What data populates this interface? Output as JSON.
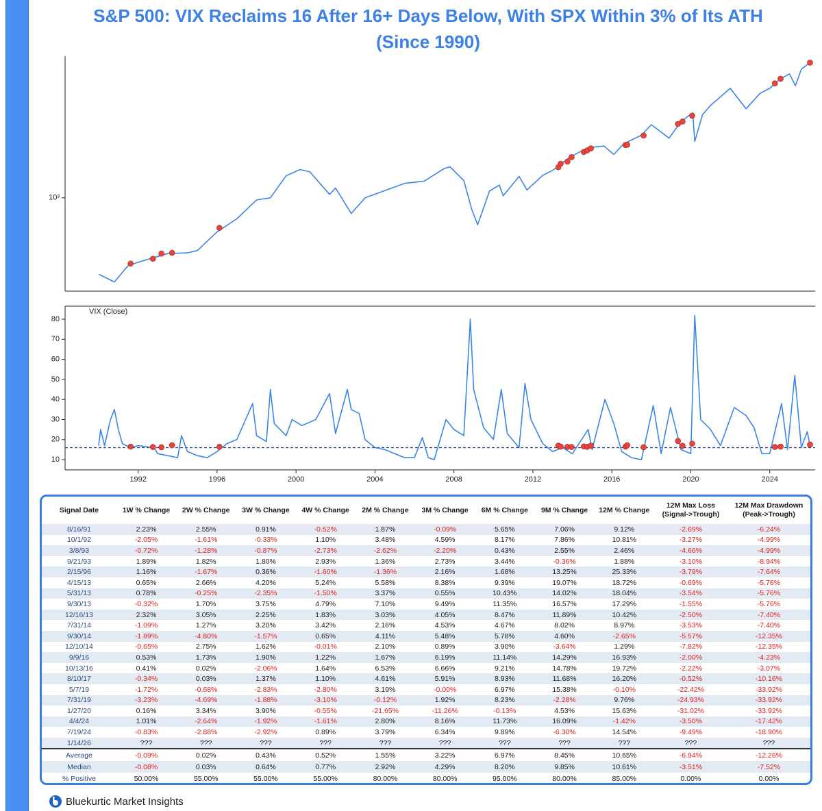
{
  "title": "S&P 500: VIX Reclaims 16 After 16+ Days Below, With SPX Within 3% of Its ATH\n(Since 1990)",
  "chart_data": [
    {
      "type": "line",
      "log": true,
      "color": "#3a86e8",
      "xlim": [
        1988.3,
        2026.3
      ],
      "ylim": [
        263,
        7600
      ],
      "yticks": [
        {
          "value": 1000,
          "label": "10³"
        }
      ],
      "x": [
        1990.0,
        1990.8,
        1991.5,
        1992.5,
        1993.5,
        1994.5,
        1995.0,
        1996.0,
        1997.0,
        1998.0,
        1998.7,
        1999.5,
        2000.2,
        2000.7,
        2001.7,
        2002.0,
        2002.8,
        2003.5,
        2004.5,
        2005.5,
        2006.5,
        2007.5,
        2007.8,
        2008.5,
        2008.9,
        2009.2,
        2009.8,
        2010.3,
        2010.5,
        2011.3,
        2011.7,
        2012.5,
        2013.0,
        2013.9,
        2014.8,
        2015.6,
        2016.1,
        2016.6,
        2017.5,
        2018.0,
        2018.9,
        2019.5,
        2020.1,
        2020.2,
        2020.6,
        2021.0,
        2022.0,
        2022.8,
        2023.5,
        2024.0,
        2024.5,
        2025.0,
        2025.3,
        2025.6,
        2026.04
      ],
      "values": [
        335,
        300,
        380,
        415,
        450,
        455,
        470,
        615,
        740,
        970,
        1000,
        1370,
        1500,
        1450,
        1050,
        1150,
        800,
        1000,
        1110,
        1230,
        1270,
        1520,
        1560,
        1280,
        850,
        680,
        1100,
        1200,
        1030,
        1360,
        1120,
        1380,
        1480,
        1800,
        2050,
        2100,
        1860,
        2170,
        2450,
        2850,
        2350,
        2980,
        3380,
        2240,
        3300,
        3750,
        4800,
        3580,
        4450,
        4800,
        5450,
        5900,
        4980,
        6300,
        6940
      ],
      "markers": {
        "color": "#e8453c",
        "x": [
          1991.62,
          1992.75,
          1993.18,
          1993.72,
          1996.12,
          2013.29,
          2013.41,
          2013.75,
          2013.96,
          2014.58,
          2014.75,
          2014.94,
          2016.69,
          2016.78,
          2017.61,
          2019.35,
          2019.58,
          2020.07,
          2024.26,
          2024.55,
          2026.04
        ],
        "values": [
          390,
          418,
          450,
          455,
          650,
          1550,
          1630,
          1680,
          1790,
          1930,
          1970,
          2030,
          2130,
          2140,
          2440,
          2880,
          2980,
          3240,
          5150,
          5500,
          6930
        ]
      }
    },
    {
      "type": "line",
      "color": "#3a86e8",
      "annotation": "VIX (Close)",
      "threshold": 16,
      "xlim": [
        1988.3,
        2026.3
      ],
      "ylim": [
        4.9,
        86.5
      ],
      "xticks": [
        1992,
        1996,
        2000,
        2004,
        2008,
        2012,
        2016,
        2020,
        2024
      ],
      "yticks": [
        10,
        20,
        30,
        40,
        50,
        60,
        70,
        80
      ],
      "x": [
        1990.0,
        1990.1,
        1990.3,
        1990.6,
        1990.8,
        1991.0,
        1991.2,
        1991.6,
        1992.0,
        1992.8,
        1993.0,
        1993.5,
        1994.0,
        1994.2,
        1994.5,
        1995.0,
        1995.5,
        1996.0,
        1996.5,
        1997.0,
        1997.8,
        1998.0,
        1998.5,
        1998.7,
        1998.9,
        1999.5,
        1999.8,
        2000.3,
        2001.0,
        2001.7,
        2002.0,
        2002.6,
        2002.8,
        2003.2,
        2003.5,
        2004.0,
        2004.5,
        2005.0,
        2005.5,
        2006.0,
        2006.4,
        2006.7,
        2007.0,
        2007.6,
        2008.0,
        2008.5,
        2008.83,
        2009.0,
        2009.5,
        2010.0,
        2010.4,
        2010.7,
        2011.3,
        2011.6,
        2011.9,
        2012.5,
        2013.0,
        2013.5,
        2014.0,
        2014.8,
        2015.0,
        2015.65,
        2016.1,
        2016.5,
        2017.0,
        2017.5,
        2018.1,
        2018.5,
        2018.97,
        2019.5,
        2020.0,
        2020.2,
        2020.5,
        2021.0,
        2021.5,
        2022.2,
        2022.8,
        2023.2,
        2023.6,
        2024.0,
        2024.6,
        2024.9,
        2025.27,
        2025.6,
        2025.9,
        2026.04
      ],
      "values": [
        17,
        25,
        17,
        30,
        35,
        25,
        18,
        16,
        17,
        16,
        13,
        12,
        11,
        22,
        14,
        12,
        11,
        14,
        18,
        20,
        38,
        22,
        19,
        45,
        28,
        22,
        30,
        27,
        30,
        43,
        23,
        45,
        35,
        33,
        20,
        16,
        15,
        13,
        11,
        11,
        21,
        11,
        10,
        30,
        25,
        22,
        80,
        45,
        26,
        20,
        45,
        23,
        16,
        48,
        30,
        18,
        14,
        16,
        13,
        25,
        15,
        40,
        28,
        14,
        11,
        10,
        37,
        13,
        36,
        15,
        13,
        82,
        30,
        25,
        17,
        36,
        32,
        26,
        13,
        13,
        38,
        15,
        52,
        16,
        24,
        17
      ],
      "markers": {
        "color": "#e8453c",
        "x": [
          1991.62,
          1992.75,
          1993.18,
          1993.72,
          1996.12,
          2013.29,
          2013.41,
          2013.75,
          2013.96,
          2014.58,
          2014.75,
          2014.94,
          2016.69,
          2016.78,
          2017.61,
          2019.35,
          2019.58,
          2020.07,
          2024.26,
          2024.55,
          2026.04
        ],
        "values": [
          16.5,
          16.3,
          16.2,
          17.2,
          16.4,
          17.0,
          16.5,
          16.4,
          16.3,
          16.6,
          16.4,
          17.0,
          16.5,
          17.2,
          16.2,
          19.3,
          16.9,
          18.0,
          16.3,
          16.5,
          17.5
        ]
      }
    }
  ],
  "table": {
    "headers": [
      "Signal Date",
      "1W % Change",
      "2W % Change",
      "3W % Change",
      "4W % Change",
      "2M % Change",
      "3M % Change",
      "6M % Change",
      "9M % Change",
      "12M % Change",
      "12M Max Loss\n(Signal->Trough)",
      "12M Max Drawdown\n(Peak->Trough)"
    ],
    "rows": [
      [
        "8/16/91",
        "2.23%",
        "2.55%",
        "0.91%",
        "-0.52%",
        "1.87%",
        "-0.09%",
        "5.65%",
        "7.06%",
        "9.12%",
        "-2.69%",
        "-6.24%"
      ],
      [
        "10/1/92",
        "-2.05%",
        "-1.61%",
        "-0.33%",
        "1.10%",
        "3.48%",
        "4.59%",
        "8.17%",
        "7.86%",
        "10.81%",
        "-3.27%",
        "-4.99%"
      ],
      [
        "3/8/93",
        "-0.72%",
        "-1.28%",
        "-0.87%",
        "-2.73%",
        "-2.62%",
        "-2.20%",
        "0.43%",
        "2.55%",
        "2.46%",
        "-4.66%",
        "-4.99%"
      ],
      [
        "9/21/93",
        "1.89%",
        "1.82%",
        "1.80%",
        "2.93%",
        "1.36%",
        "2.73%",
        "3.44%",
        "-0.36%",
        "1.88%",
        "-3.10%",
        "-8.94%"
      ],
      [
        "2/15/96",
        "1.16%",
        "-1.67%",
        "0.36%",
        "-1.60%",
        "-1.36%",
        "2.16%",
        "1.68%",
        "13.25%",
        "25.33%",
        "-3.79%",
        "-7.64%"
      ],
      [
        "4/15/13",
        "0.65%",
        "2.66%",
        "4.20%",
        "5.24%",
        "5.58%",
        "8.38%",
        "9.39%",
        "19.07%",
        "18.72%",
        "-0.69%",
        "-5.76%"
      ],
      [
        "5/31/13",
        "0.78%",
        "-0.25%",
        "-2.35%",
        "-1.50%",
        "3.37%",
        "0.55%",
        "10.43%",
        "14.02%",
        "18.04%",
        "-3.54%",
        "-5.76%"
      ],
      [
        "9/30/13",
        "-0.32%",
        "1.70%",
        "3.75%",
        "4.79%",
        "7.10%",
        "9.49%",
        "11.35%",
        "16.57%",
        "17.29%",
        "-1.55%",
        "-5.76%"
      ],
      [
        "12/16/13",
        "2.32%",
        "3.05%",
        "2.25%",
        "1.83%",
        "3.03%",
        "4.05%",
        "8.47%",
        "11.89%",
        "10.42%",
        "-2.50%",
        "-7.40%"
      ],
      [
        "7/31/14",
        "-1.09%",
        "1.27%",
        "3.20%",
        "3.42%",
        "2.16%",
        "4.53%",
        "4.67%",
        "8.02%",
        "8.97%",
        "-3.53%",
        "-7.40%"
      ],
      [
        "9/30/14",
        "-1.89%",
        "-4.80%",
        "-1.57%",
        "0.65%",
        "4.11%",
        "5.48%",
        "5.78%",
        "4.60%",
        "-2.65%",
        "-5.57%",
        "-12.35%"
      ],
      [
        "12/10/14",
        "-0.65%",
        "2.75%",
        "1.62%",
        "-0.01%",
        "2.10%",
        "0.89%",
        "3.90%",
        "-3.64%",
        "1.29%",
        "-7.82%",
        "-12.35%"
      ],
      [
        "9/9/16",
        "0.53%",
        "1.73%",
        "1.90%",
        "1.22%",
        "1.67%",
        "6.19%",
        "11.14%",
        "14.29%",
        "16.93%",
        "-2.00%",
        "-4.23%"
      ],
      [
        "10/13/16",
        "0.41%",
        "0.02%",
        "-2.06%",
        "1.64%",
        "6.53%",
        "6.66%",
        "9.21%",
        "14.78%",
        "19.72%",
        "-2.22%",
        "-3.07%"
      ],
      [
        "8/10/17",
        "-0.34%",
        "0.03%",
        "1.37%",
        "1.10%",
        "4.61%",
        "5.91%",
        "8.93%",
        "11.68%",
        "16.20%",
        "-0.52%",
        "-10.16%"
      ],
      [
        "5/7/19",
        "-1.72%",
        "-0.68%",
        "-2.83%",
        "-2.80%",
        "3.19%",
        "-0.00%",
        "6.97%",
        "15.38%",
        "-0.10%",
        "-22.42%",
        "-33.92%"
      ],
      [
        "7/31/19",
        "-3.23%",
        "-4.69%",
        "-1.88%",
        "-3.10%",
        "-0.12%",
        "1.92%",
        "8.23%",
        "-2.28%",
        "9.76%",
        "-24.93%",
        "-33.92%"
      ],
      [
        "1/27/20",
        "0.16%",
        "3.34%",
        "3.90%",
        "-0.55%",
        "-21.65%",
        "-11.26%",
        "-0.13%",
        "4.53%",
        "15.63%",
        "-31.02%",
        "-33.92%"
      ],
      [
        "4/4/24",
        "1.01%",
        "-2.64%",
        "-1.92%",
        "-1.61%",
        "2.80%",
        "8.16%",
        "11.73%",
        "16.09%",
        "-1.42%",
        "-3.50%",
        "-17.42%"
      ],
      [
        "7/19/24",
        "-0.83%",
        "-2.88%",
        "-2.92%",
        "0.89%",
        "3.79%",
        "6.34%",
        "9.89%",
        "-6.30%",
        "14.54%",
        "-9.49%",
        "-18.90%"
      ],
      [
        "1/14/26",
        "???",
        "???",
        "???",
        "???",
        "???",
        "???",
        "???",
        "???",
        "???",
        "???",
        "???"
      ]
    ],
    "summary": [
      [
        "Average",
        "-0.09%",
        "0.02%",
        "0.43%",
        "0.52%",
        "1.55%",
        "3.22%",
        "6.97%",
        "8.45%",
        "10.65%",
        "-6.94%",
        "-12.26%"
      ],
      [
        "Median",
        "-0.08%",
        "0.03%",
        "0.64%",
        "0.77%",
        "2.92%",
        "4.29%",
        "8.20%",
        "9.85%",
        "10.61%",
        "-3.51%",
        "-7.52%"
      ],
      [
        "% Positive",
        "50.00%",
        "55.00%",
        "55.00%",
        "55.00%",
        "80.00%",
        "80.00%",
        "95.00%",
        "80.00%",
        "85.00%",
        "0.00%",
        "0.00%"
      ]
    ]
  },
  "footer": {
    "brand": "Bluekurtic Market Insights"
  }
}
